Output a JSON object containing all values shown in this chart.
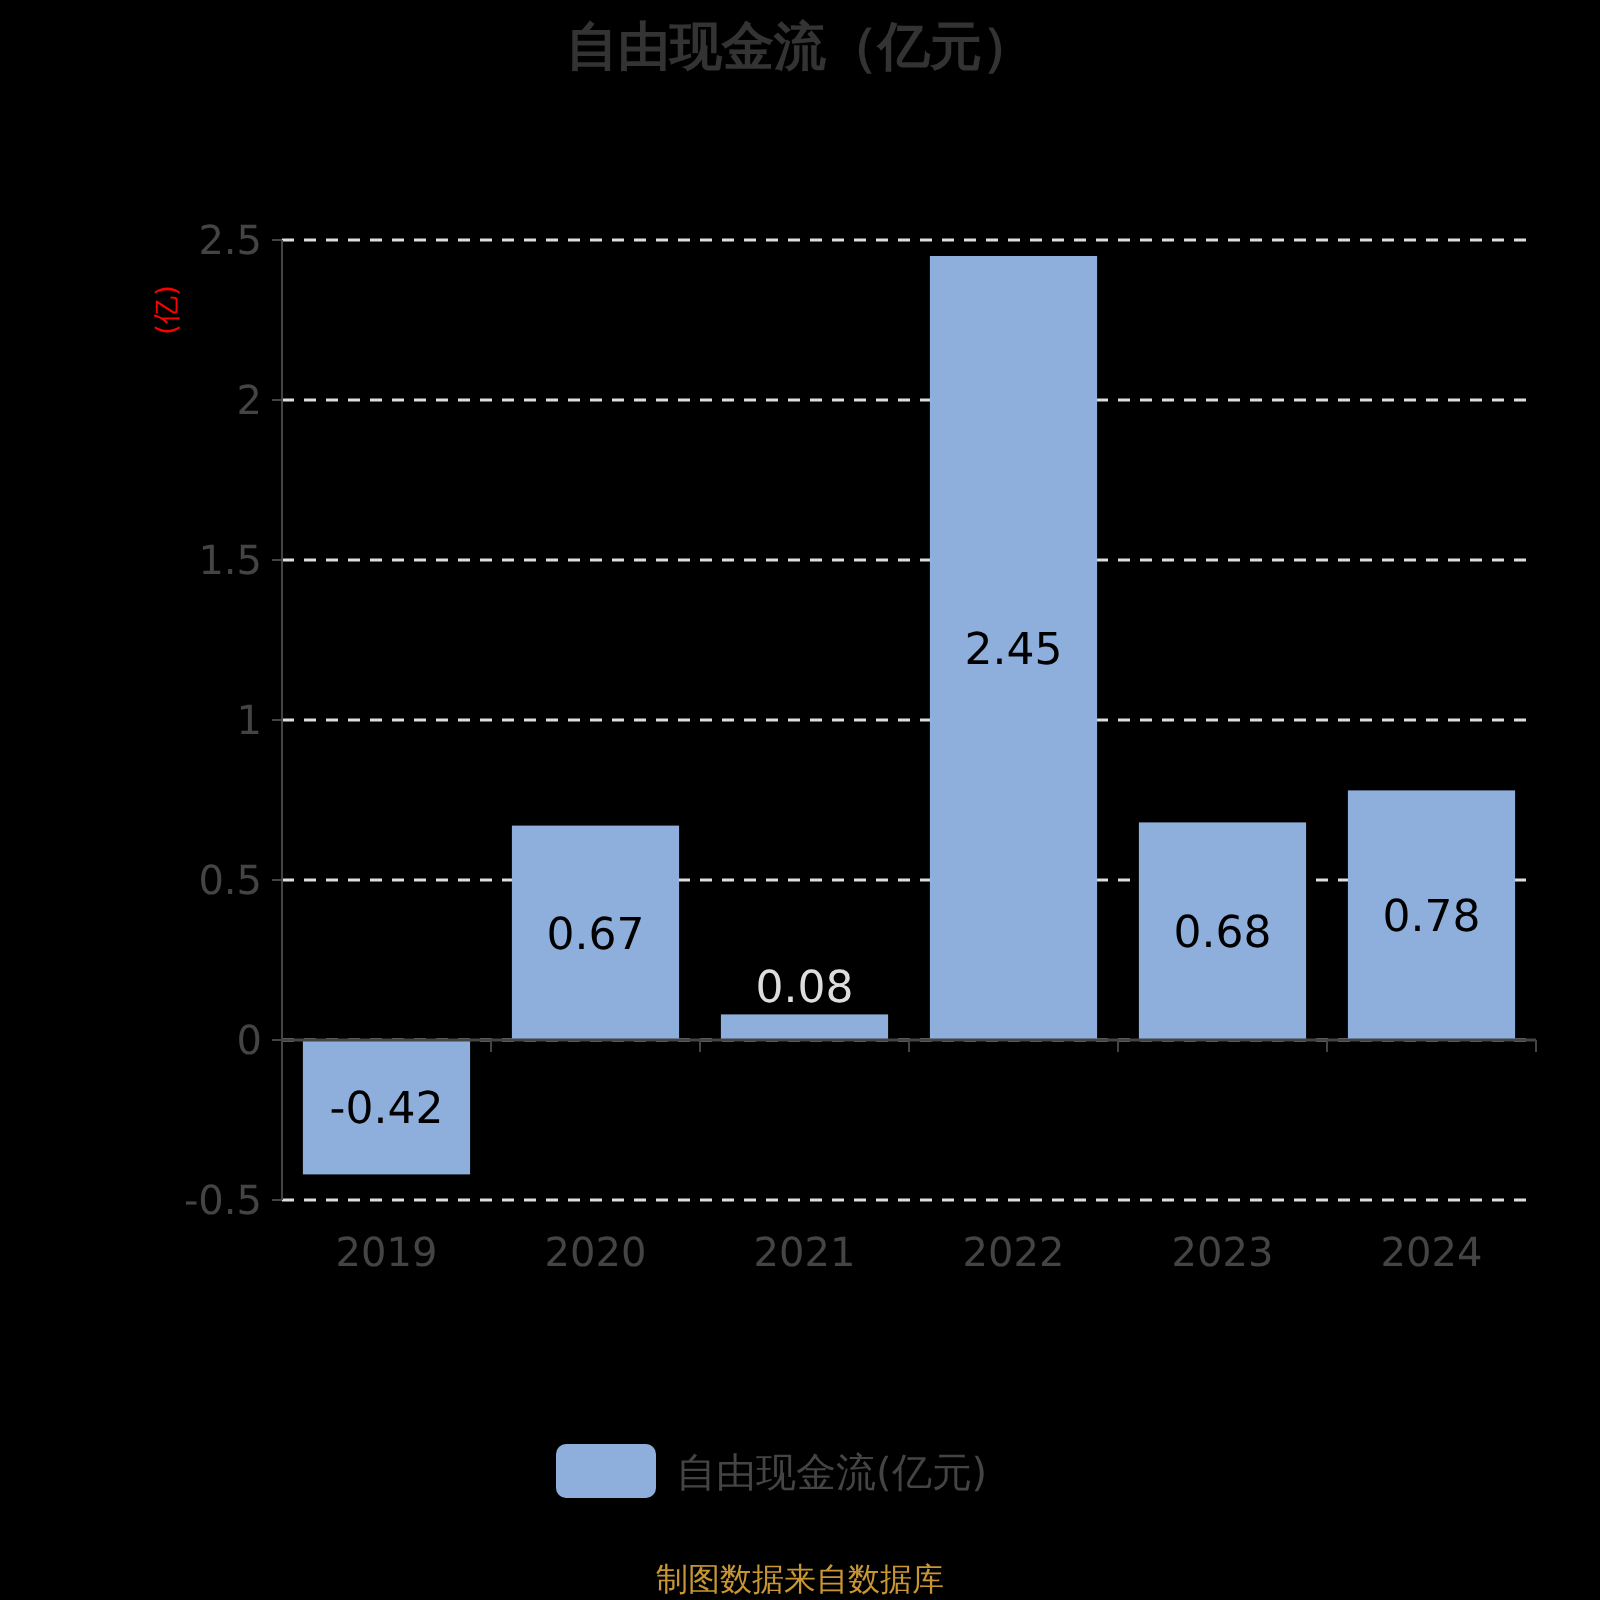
{
  "chart_data": {
    "type": "bar",
    "title": "自由现金流（亿元）",
    "ylabel": "(亿)",
    "categories": [
      "2019",
      "2020",
      "2021",
      "2022",
      "2023",
      "2024"
    ],
    "series": [
      {
        "name": "自由现金流(亿元)",
        "color": "#8eaedc",
        "values": [
          -0.42,
          0.67,
          0.08,
          2.45,
          0.68,
          0.78
        ]
      }
    ],
    "ylim": [
      -0.5,
      2.5
    ],
    "yticks": [
      -0.5,
      0,
      0.5,
      1,
      1.5,
      2,
      2.5
    ],
    "grid": "y",
    "legend": "bottom",
    "data_labels": true,
    "annotations": [
      "制图数据来自数据库"
    ]
  }
}
